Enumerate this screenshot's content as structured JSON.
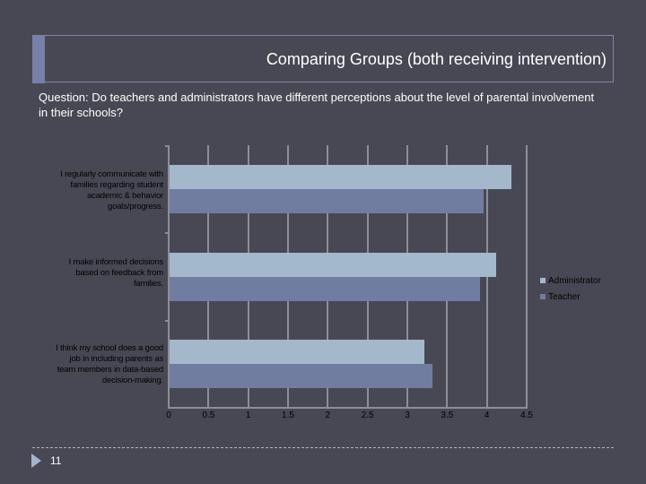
{
  "slide": {
    "title": "Comparing Groups (both receiving intervention)",
    "question": "Question: Do teachers and administrators have different perceptions about the level of parental involvement in their schools?",
    "page_number": "11"
  },
  "colors": {
    "background": "#484854",
    "administrator": "#a4b8cc",
    "teacher": "#707ca0",
    "gridline": "#8e8e96"
  },
  "chart_data": {
    "type": "bar",
    "orientation": "horizontal",
    "title": "",
    "xlabel": "",
    "ylabel": "",
    "categories": [
      "I regularly communicate with families regarding student academic & behavior goals/progress.",
      "I make informed decisions based on feedback from families.",
      "I think my school does a good job in including parents as team members in data-based decision-making."
    ],
    "series": [
      {
        "name": "Administrator",
        "values": [
          4.3,
          4.1,
          3.2
        ]
      },
      {
        "name": "Teacher",
        "values": [
          3.95,
          3.9,
          3.3
        ]
      }
    ],
    "xlim": [
      0,
      4.5
    ],
    "x_ticks": [
      "0",
      "0.5",
      "1",
      "1.5",
      "2",
      "2.5",
      "3",
      "3.5",
      "4",
      "4.5"
    ],
    "grid": true,
    "legend_position": "right"
  },
  "labels": {
    "cat0": [
      "I regularly communicate with",
      "families regarding student",
      "academic & behavior",
      "goals/progress."
    ],
    "cat1": [
      "I make informed decisions",
      "based on feedback from",
      "families."
    ],
    "cat2": [
      "I think my school does a good",
      "job in including parents as",
      "team members in data-based",
      "decision-making."
    ]
  }
}
